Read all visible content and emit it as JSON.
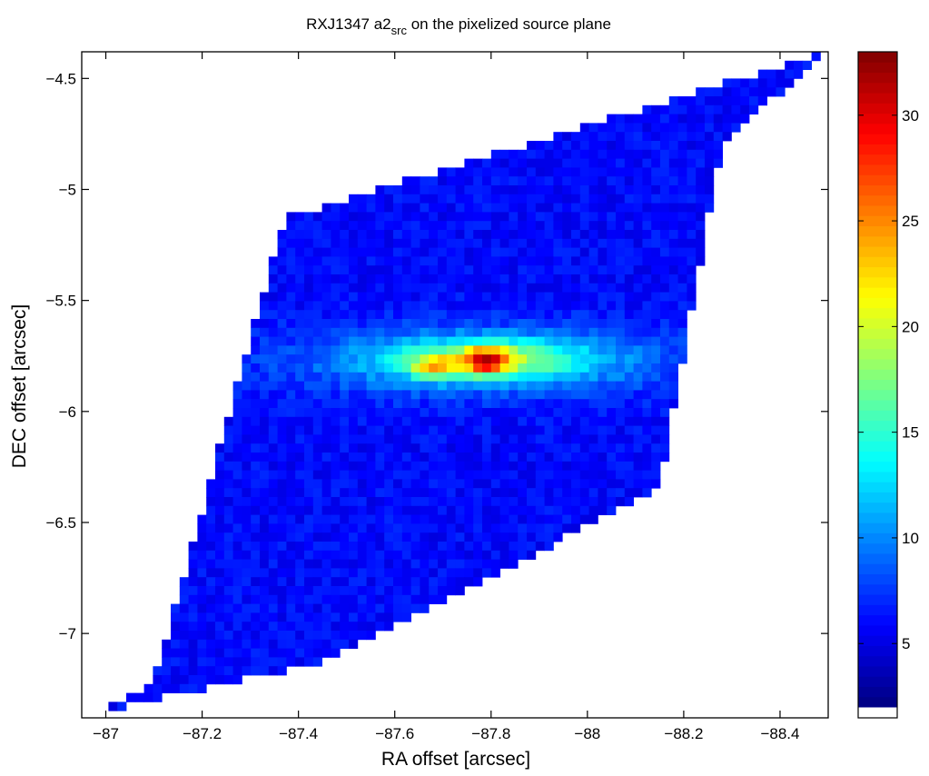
{
  "chart_data": {
    "type": "heatmap",
    "title": "RXJ1347 a2",
    "title_subscript": "src",
    "title_suffix": " on the pixelized source plane",
    "xlabel": "RA offset [arcsec]",
    "ylabel": "DEC offset [arcsec]",
    "xlim": [
      -86.95,
      -88.5
    ],
    "ylim": [
      -7.38,
      -4.38
    ],
    "xticks": [
      -87,
      -87.2,
      -87.4,
      -87.6,
      -87.8,
      -88,
      -88.2,
      -88.4
    ],
    "xticklabels": [
      "−87",
      "−87.2",
      "−87.4",
      "−87.6",
      "−87.8",
      "−88",
      "−88.2",
      "−88.4"
    ],
    "yticks": [
      -4.5,
      -5,
      -5.5,
      -6,
      -6.5,
      -7
    ],
    "yticklabels": [
      "−4.5",
      "−5",
      "−5.5",
      "−6",
      "−6.5",
      "−7"
    ],
    "colorbar": {
      "range": [
        2,
        33
      ],
      "ticks": [
        5,
        10,
        15,
        20,
        25,
        30
      ],
      "ticklabels": [
        "5",
        "10",
        "15",
        "20",
        "25",
        "30"
      ],
      "colormap": "jet"
    },
    "region": {
      "description_points": [
        {
          "ra": -86.95,
          "dec": -7.38
        },
        {
          "ra": -87.1,
          "dec": -7.22
        },
        {
          "ra": -87.37,
          "dec": -5.13
        },
        {
          "ra": -88.5,
          "dec": -4.38
        },
        {
          "ra": -88.28,
          "dec": -4.78
        },
        {
          "ra": -88.15,
          "dec": -6.35
        },
        {
          "ra": -87.45,
          "dec": -7.13
        },
        {
          "ra": -87.03,
          "dec": -7.33
        }
      ]
    },
    "background_level": 6,
    "features": [
      {
        "name": "peak",
        "ra": -87.79,
        "dec": -5.77,
        "value": 33
      },
      {
        "name": "secondary-peak",
        "ra": -87.68,
        "dec": -5.8,
        "value": 28
      }
    ]
  }
}
